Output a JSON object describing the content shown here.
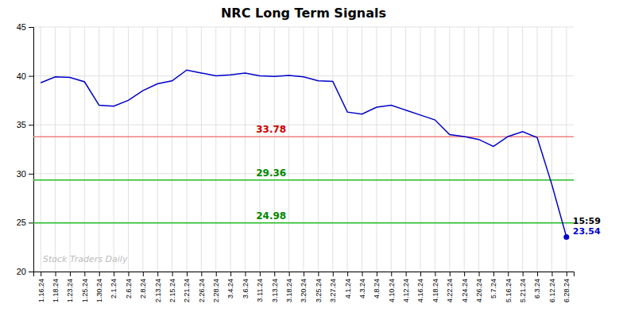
{
  "chart_data": {
    "type": "line",
    "title": "NRC Long Term Signals",
    "categories": [
      "1.16.24",
      "1.18.24",
      "1.23.24",
      "1.25.24",
      "1.30.24",
      "2.1.24",
      "2.6.24",
      "2.8.24",
      "2.13.24",
      "2.15.24",
      "2.21.24",
      "2.26.24",
      "2.28.24",
      "3.4.24",
      "3.6.24",
      "3.11.24",
      "3.13.24",
      "3.18.24",
      "3.20.24",
      "3.25.24",
      "3.27.24",
      "4.1.24",
      "4.3.24",
      "4.8.24",
      "4.10.24",
      "4.12.24",
      "4.16.24",
      "4.18.24",
      "4.22.24",
      "4.24.24",
      "4.26.24",
      "5.7.24",
      "5.16.24",
      "5.21.24",
      "6.3.24",
      "6.12.24",
      "6.28.24"
    ],
    "values": [
      39.3,
      39.9,
      39.85,
      39.4,
      37.0,
      36.9,
      37.5,
      38.5,
      39.2,
      39.5,
      40.6,
      40.3,
      40.0,
      40.1,
      40.3,
      40.0,
      39.95,
      40.05,
      39.9,
      39.5,
      39.45,
      36.3,
      36.1,
      36.8,
      37.0,
      36.5,
      36.0,
      35.5,
      34.0,
      33.8,
      33.5,
      32.8,
      33.8,
      34.3,
      33.7,
      28.9,
      23.54
    ],
    "color": "#0000cc",
    "ylim": [
      20,
      45
    ],
    "yticks": [
      20,
      25,
      30,
      35,
      40,
      45
    ],
    "grid": true,
    "hlines": [
      {
        "value": 33.78,
        "label": "33.78",
        "color": "#f08080",
        "label_color": "#cc0000"
      },
      {
        "value": 29.36,
        "label": "29.36",
        "color": "#22bb22",
        "label_color": "#008800"
      },
      {
        "value": 24.98,
        "label": "24.98",
        "color": "#22bb22",
        "label_color": "#008800"
      }
    ],
    "end_labels": [
      "15:59",
      "23.54"
    ],
    "watermark": "Stock Traders Daily"
  }
}
